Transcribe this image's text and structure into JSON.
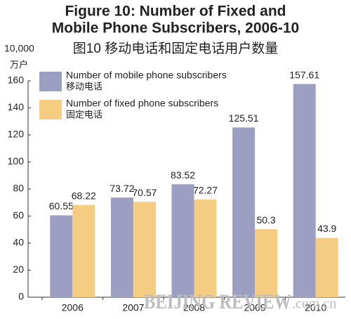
{
  "chart_data": {
    "type": "bar",
    "title": "Figure 10: Number of Fixed and",
    "title2": "Mobile Phone Subscribers, 2006-10",
    "subtitle": "图10  移动电话和固定电话用户数量",
    "y_unit": "10,000",
    "y_unit_cn": "万户",
    "watermark": [
      "BEIJING REVIEW",
      ".com.cn"
    ],
    "categories": [
      "2006",
      "2007",
      "2008",
      "2009",
      "2010"
    ],
    "series": [
      {
        "name": "Number of mobile phone subscribers",
        "name_cn": "移动电话",
        "color": "#9d9fc2",
        "values": [
          60.55,
          73.72,
          83.52,
          125.51,
          157.61
        ]
      },
      {
        "name": "Number of fixed phone subscribers",
        "name_cn": "固定电话",
        "color": "#f5cd82",
        "values": [
          68.22,
          70.57,
          72.27,
          50.3,
          43.9
        ]
      }
    ],
    "ylim": [
      0,
      160
    ],
    "yticks": [
      0,
      20,
      40,
      60,
      80,
      100,
      120,
      140,
      160
    ],
    "grid": false
  }
}
